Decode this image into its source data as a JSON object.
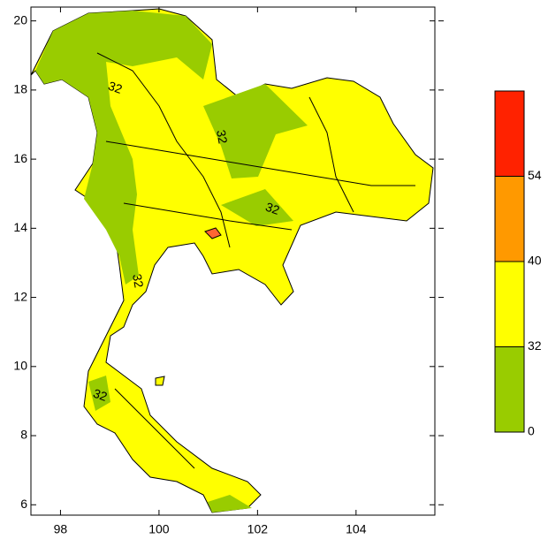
{
  "map": {
    "xlim": [
      97.4,
      105.6
    ],
    "ylim": [
      5.7,
      20.4
    ],
    "xticks": [
      98,
      100,
      102,
      104
    ],
    "yticks": [
      6,
      8,
      10,
      12,
      14,
      16,
      18,
      20
    ],
    "contour_labels": [
      "32",
      "32",
      "32",
      "32",
      "32"
    ]
  },
  "colorbar": {
    "levels": [
      0,
      32,
      40,
      54
    ],
    "colors": [
      "#99cc00",
      "#ffff00",
      "#ff9900",
      "#ff2200"
    ]
  }
}
